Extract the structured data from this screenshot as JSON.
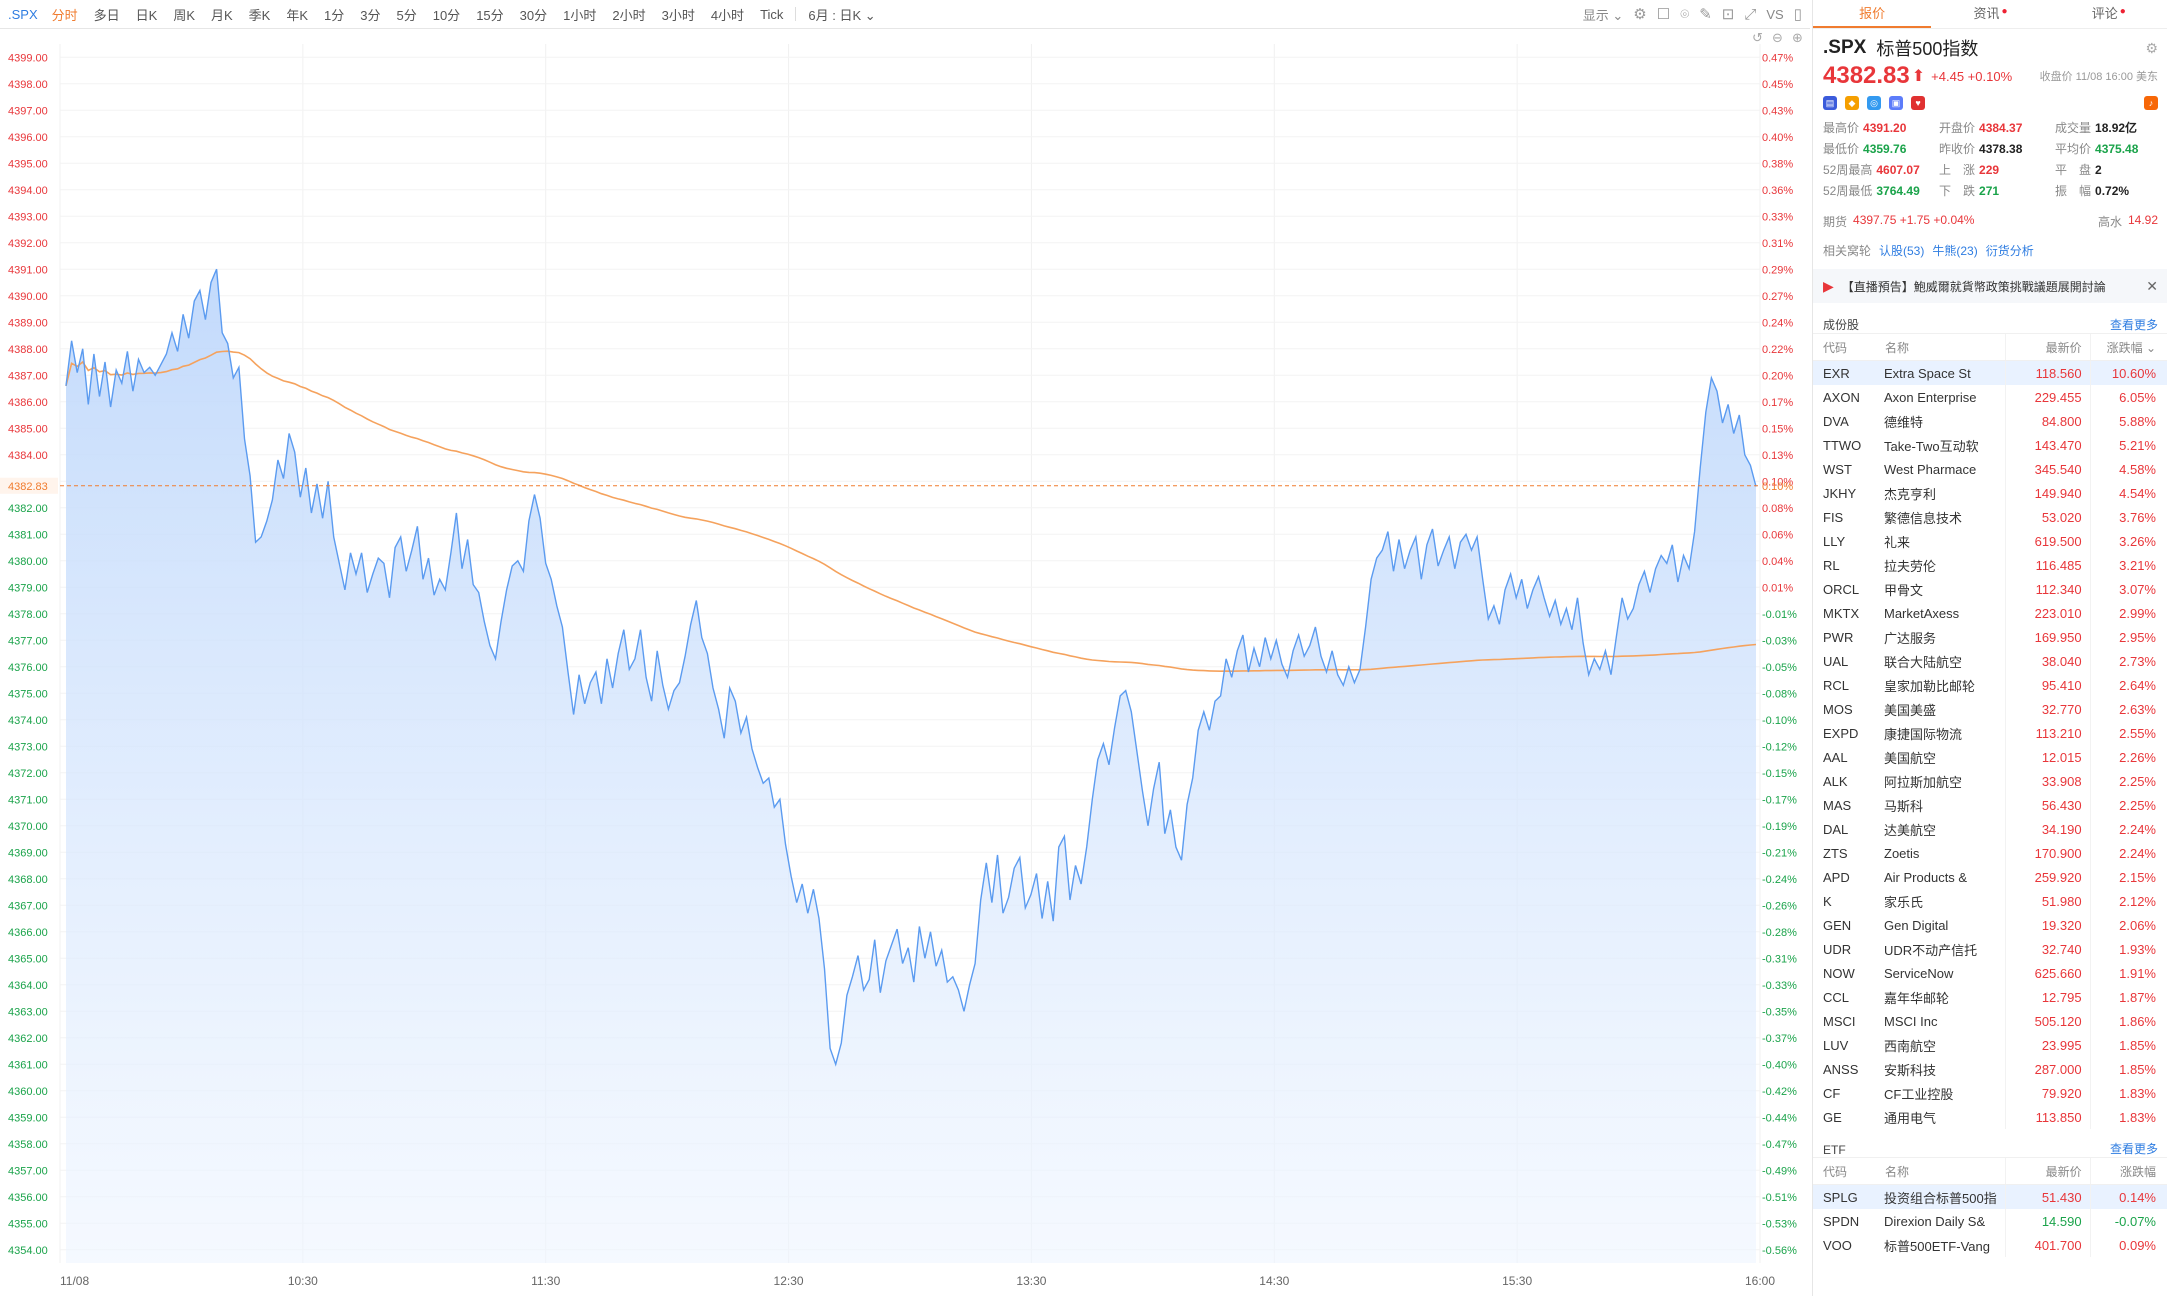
{
  "toolbar": {
    "symbol": ".SPX",
    "timeframes": [
      "分时",
      "多日",
      "日K",
      "周K",
      "月K",
      "季K",
      "年K",
      "1分",
      "3分",
      "5分",
      "10分",
      "15分",
      "30分",
      "1小时",
      "2小时",
      "3小时",
      "4小时",
      "Tick"
    ],
    "active_timeframe": "分时",
    "range_select": "6月 : 日K",
    "display_label": "显示",
    "vs_label": "VS"
  },
  "chart_data": {
    "type": "area",
    "x_ticks": [
      "11/08",
      "10:30",
      "11:30",
      "12:30",
      "13:30",
      "14:30",
      "15:30",
      "16:00"
    ],
    "y_left_ticks": [
      "4399.00",
      "4398.00",
      "4397.00",
      "4396.00",
      "4395.00",
      "4394.00",
      "4393.00",
      "4392.00",
      "4391.00",
      "4390.00",
      "4389.00",
      "4388.00",
      "4387.00",
      "4386.00",
      "4385.00",
      "4384.00",
      "4383.00",
      "4382.00",
      "4381.00",
      "4380.00",
      "4379.00",
      "4378.00",
      "4377.00",
      "4376.00",
      "4375.00",
      "4374.00",
      "4373.00",
      "4372.00",
      "4371.00",
      "4370.00",
      "4369.00",
      "4368.00",
      "4367.00",
      "4366.00",
      "4365.00",
      "4364.00",
      "4363.00",
      "4362.00",
      "4361.00",
      "4360.00",
      "4359.00",
      "4358.00",
      "4357.00",
      "4356.00",
      "4355.00",
      "4354.00"
    ],
    "y_right_ticks": [
      "0.47%",
      "0.45%",
      "0.43%",
      "0.40%",
      "0.38%",
      "0.36%",
      "0.33%",
      "0.31%",
      "0.29%",
      "0.27%",
      "0.24%",
      "0.22%",
      "0.20%",
      "0.17%",
      "0.15%",
      "0.13%",
      "0.10%",
      "0.08%",
      "0.06%",
      "0.04%",
      "0.01%",
      "-0.01%",
      "-0.03%",
      "-0.05%",
      "-0.08%",
      "-0.10%",
      "-0.12%",
      "-0.15%",
      "-0.17%",
      "-0.19%",
      "-0.21%",
      "-0.24%",
      "-0.26%",
      "-0.28%",
      "-0.31%",
      "-0.33%",
      "-0.35%",
      "-0.37%",
      "-0.40%",
      "-0.42%",
      "-0.44%",
      "-0.47%",
      "-0.49%",
      "-0.51%",
      "-0.53%",
      "-0.56%"
    ],
    "y_range": [
      4353.5,
      4399.5
    ],
    "current_price_label": "4382.83",
    "current_pct_label": "0.10%",
    "reference_price": 4382.83,
    "price_series": [
      4386.6,
      4388.3,
      4387.1,
      4388.0,
      4385.9,
      4387.8,
      4386.2,
      4387.5,
      4385.8,
      4387.2,
      4386.7,
      4387.9,
      4386.4,
      4387.6,
      4387.1,
      4387.3,
      4387.0,
      4387.4,
      4387.8,
      4388.6,
      4387.9,
      4389.3,
      4388.4,
      4389.8,
      4390.2,
      4389.1,
      4390.5,
      4391.0,
      4388.6,
      4388.2,
      4386.9,
      4387.3,
      4384.6,
      4383.2,
      4380.7,
      4380.9,
      4381.5,
      4382.3,
      4383.8,
      4383.1,
      4384.8,
      4384.1,
      4382.4,
      4383.5,
      4381.8,
      4382.9,
      4381.6,
      4383.0,
      4380.9,
      4379.9,
      4378.9,
      4380.3,
      4379.5,
      4380.3,
      4378.8,
      4379.5,
      4380.1,
      4379.9,
      4378.6,
      4380.5,
      4380.9,
      4379.6,
      4380.4,
      4381.3,
      4379.3,
      4380.1,
      4378.7,
      4379.3,
      4378.9,
      4380.3,
      4381.8,
      4379.7,
      4380.8,
      4379.1,
      4378.8,
      4377.7,
      4376.8,
      4376.3,
      4377.7,
      4378.9,
      4379.8,
      4380.0,
      4379.6,
      4381.5,
      4382.5,
      4381.6,
      4379.9,
      4379.3,
      4378.3,
      4377.5,
      4375.8,
      4374.2,
      4375.7,
      4374.6,
      4375.4,
      4375.8,
      4374.6,
      4376.3,
      4375.2,
      4376.5,
      4377.4,
      4375.9,
      4376.3,
      4377.4,
      4375.6,
      4374.7,
      4376.6,
      4375.3,
      4374.4,
      4375.1,
      4375.4,
      4376.4,
      4377.6,
      4378.5,
      4377.1,
      4376.5,
      4375.2,
      4374.4,
      4373.3,
      4375.2,
      4374.7,
      4373.5,
      4374.1,
      4372.9,
      4372.2,
      4371.6,
      4371.8,
      4370.7,
      4371.0,
      4369.3,
      4368.1,
      4367.1,
      4367.8,
      4366.7,
      4367.6,
      4366.5,
      4364.6,
      4361.6,
      4361.0,
      4361.8,
      4363.6,
      4364.3,
      4365.1,
      4363.8,
      4364.2,
      4365.7,
      4363.7,
      4364.9,
      4365.5,
      4366.1,
      4364.8,
      4365.4,
      4364.1,
      4366.2,
      4365.0,
      4366.0,
      4364.7,
      4365.3,
      4364.1,
      4364.3,
      4363.8,
      4363.0,
      4364.0,
      4364.8,
      4367.2,
      4368.6,
      4367.1,
      4368.9,
      4366.7,
      4367.3,
      4368.4,
      4368.8,
      4366.9,
      4367.4,
      4368.2,
      4366.5,
      4367.9,
      4366.4,
      4369.2,
      4369.6,
      4367.2,
      4368.5,
      4367.8,
      4369.2,
      4371.0,
      4372.5,
      4373.1,
      4372.3,
      4373.7,
      4374.9,
      4375.1,
      4374.3,
      4372.8,
      4371.3,
      4370.0,
      4371.4,
      4372.4,
      4369.7,
      4370.6,
      4369.2,
      4368.7,
      4370.8,
      4371.8,
      4373.6,
      4374.3,
      4373.6,
      4374.7,
      4374.9,
      4376.3,
      4375.6,
      4376.6,
      4377.2,
      4375.8,
      4376.7,
      4376.0,
      4377.1,
      4376.3,
      4377.0,
      4376.1,
      4375.6,
      4376.6,
      4377.2,
      4376.4,
      4376.8,
      4377.5,
      4376.4,
      4375.8,
      4376.6,
      4375.7,
      4375.3,
      4376.0,
      4375.4,
      4375.9,
      4377.5,
      4379.3,
      4380.1,
      4380.4,
      4381.1,
      4379.6,
      4380.8,
      4379.7,
      4380.4,
      4380.9,
      4379.3,
      4380.6,
      4381.2,
      4379.8,
      4380.4,
      4380.9,
      4379.7,
      4380.7,
      4381.0,
      4380.4,
      4380.9,
      4379.3,
      4377.8,
      4378.3,
      4377.6,
      4378.9,
      4379.5,
      4378.6,
      4379.3,
      4378.2,
      4378.9,
      4379.4,
      4378.6,
      4377.9,
      4378.5,
      4377.6,
      4378.2,
      4377.4,
      4378.6,
      4376.9,
      4375.7,
      4376.3,
      4375.9,
      4376.6,
      4375.7,
      4377.2,
      4378.6,
      4377.8,
      4378.2,
      4379.1,
      4379.6,
      4378.8,
      4379.7,
      4380.2,
      4379.9,
      4380.6,
      4379.2,
      4380.2,
      4379.7,
      4381.1,
      4383.5,
      4385.6,
      4386.9,
      4386.4,
      4385.2,
      4385.9,
      4384.8,
      4385.5,
      4384.0,
      4383.6,
      4382.8
    ]
  },
  "side": {
    "tabs": [
      "报价",
      "资讯",
      "评论"
    ],
    "active_tab": "报价",
    "code": ".SPX",
    "name": "标普500指数",
    "price": "4382.83",
    "price_arrow": "⬆",
    "change": "+4.45 +0.10%",
    "close_time": "收盘价 11/08 16:00 美东",
    "stats": [
      {
        "label": "最高价",
        "value": "4391.20",
        "cls": "red"
      },
      {
        "label": "开盘价",
        "value": "4384.37",
        "cls": "red"
      },
      {
        "label": "成交量",
        "value": "18.92亿",
        "cls": "dark"
      },
      {
        "label": "最低价",
        "value": "4359.76",
        "cls": "green"
      },
      {
        "label": "昨收价",
        "value": "4378.38",
        "cls": "dark"
      },
      {
        "label": "平均价",
        "value": "4375.48",
        "cls": "green"
      },
      {
        "label": "52周最高",
        "value": "4607.07",
        "cls": "red"
      },
      {
        "label": "上　涨",
        "value": "229",
        "cls": "red"
      },
      {
        "label": "平　盘",
        "value": "2",
        "cls": "dark"
      },
      {
        "label": "52周最低",
        "value": "3764.49",
        "cls": "green"
      },
      {
        "label": "下　跌",
        "value": "271",
        "cls": "green"
      },
      {
        "label": "振　幅",
        "value": "0.72%",
        "cls": "dark"
      }
    ],
    "futures_label": "期货",
    "futures_value": "4397.75 +1.75 +0.04%",
    "premium_label": "高水",
    "premium_value": "14.92",
    "related_label": "相关窝轮",
    "related_links": [
      "认股(53)",
      "牛熊(23)",
      "衍货分析"
    ],
    "banner_text": "【直播預告】鮑威爾就貨幣政策挑戰議題展開討論",
    "constituents_title": "成份股",
    "more_label": "查看更多",
    "col_code": "代码",
    "col_name": "名称",
    "col_price": "最新价",
    "col_change": "涨跌幅",
    "constituents": [
      [
        "EXR",
        "Extra Space St",
        "118.560",
        "10.60%"
      ],
      [
        "AXON",
        "Axon Enterprise",
        "229.455",
        "6.05%"
      ],
      [
        "DVA",
        "德维特",
        "84.800",
        "5.88%"
      ],
      [
        "TTWO",
        "Take-Two互动软",
        "143.470",
        "5.21%"
      ],
      [
        "WST",
        "West Pharmace",
        "345.540",
        "4.58%"
      ],
      [
        "JKHY",
        "杰克亨利",
        "149.940",
        "4.54%"
      ],
      [
        "FIS",
        "繁德信息技术",
        "53.020",
        "3.76%"
      ],
      [
        "LLY",
        "礼来",
        "619.500",
        "3.26%"
      ],
      [
        "RL",
        "拉夫劳伦",
        "116.485",
        "3.21%"
      ],
      [
        "ORCL",
        "甲骨文",
        "112.340",
        "3.07%"
      ],
      [
        "MKTX",
        "MarketAxess",
        "223.010",
        "2.99%"
      ],
      [
        "PWR",
        "广达服务",
        "169.950",
        "2.95%"
      ],
      [
        "UAL",
        "联合大陆航空",
        "38.040",
        "2.73%"
      ],
      [
        "RCL",
        "皇家加勒比邮轮",
        "95.410",
        "2.64%"
      ],
      [
        "MOS",
        "美国美盛",
        "32.770",
        "2.63%"
      ],
      [
        "EXPD",
        "康捷国际物流",
        "113.210",
        "2.55%"
      ],
      [
        "AAL",
        "美国航空",
        "12.015",
        "2.26%"
      ],
      [
        "ALK",
        "阿拉斯加航空",
        "33.908",
        "2.25%"
      ],
      [
        "MAS",
        "马斯科",
        "56.430",
        "2.25%"
      ],
      [
        "DAL",
        "达美航空",
        "34.190",
        "2.24%"
      ],
      [
        "ZTS",
        "Zoetis",
        "170.900",
        "2.24%"
      ],
      [
        "APD",
        "Air Products &",
        "259.920",
        "2.15%"
      ],
      [
        "K",
        "家乐氏",
        "51.980",
        "2.12%"
      ],
      [
        "GEN",
        "Gen Digital",
        "19.320",
        "2.06%"
      ],
      [
        "UDR",
        "UDR不动产信托",
        "32.740",
        "1.93%"
      ],
      [
        "NOW",
        "ServiceNow",
        "625.660",
        "1.91%"
      ],
      [
        "CCL",
        "嘉年华邮轮",
        "12.795",
        "1.87%"
      ],
      [
        "MSCI",
        "MSCI Inc",
        "505.120",
        "1.86%"
      ],
      [
        "LUV",
        "西南航空",
        "23.995",
        "1.85%"
      ],
      [
        "ANSS",
        "安斯科技",
        "287.000",
        "1.85%"
      ],
      [
        "CF",
        "CF工业控股",
        "79.920",
        "1.83%"
      ],
      [
        "GE",
        "通用电气",
        "113.850",
        "1.83%"
      ]
    ],
    "etf_title": "ETF",
    "etf": [
      [
        "SPLG",
        "投资组合标普500指",
        "51.430",
        "0.14%",
        "red"
      ],
      [
        "SPDN",
        "Direxion Daily S&",
        "14.590",
        "-0.07%",
        "green"
      ],
      [
        "VOO",
        "标普500ETF-Vang",
        "401.700",
        "0.09%",
        "red"
      ]
    ],
    "colors": {
      "up": "#e8363a",
      "down": "#1aa34a",
      "accent": "#f07c2f",
      "link": "#2f7de1"
    }
  }
}
